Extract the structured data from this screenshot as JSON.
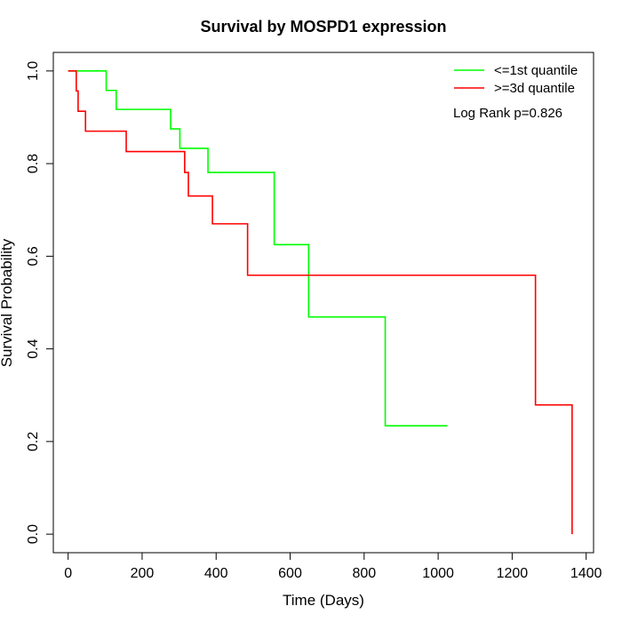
{
  "chart_data": {
    "type": "line",
    "step": true,
    "title": "Survival by MOSPD1 expression",
    "xlabel": "Time (Days)",
    "ylabel": "Survival Probability",
    "xlim": [
      -40,
      1420
    ],
    "ylim": [
      -0.04,
      1.04
    ],
    "x_ticks": [
      0,
      200,
      400,
      600,
      800,
      1000,
      1200,
      1400
    ],
    "y_ticks": [
      0.0,
      0.2,
      0.4,
      0.6,
      0.8,
      1.0
    ],
    "y_tick_labels": [
      "0.0",
      "0.2",
      "0.4",
      "0.6",
      "0.8",
      "1.0"
    ],
    "grid": false,
    "legend_position": "top-right",
    "annotation": "Log Rank p=0.826",
    "series": [
      {
        "name": "<=1st quantile",
        "color": "#00ff00",
        "x": [
          0,
          103,
          130,
          277,
          302,
          378,
          557,
          650,
          857,
          1025
        ],
        "y": [
          1.0,
          0.958,
          0.917,
          0.875,
          0.833,
          0.781,
          0.625,
          0.469,
          0.234,
          0.234
        ]
      },
      {
        "name": ">=3d quantile",
        "color": "#ff0000",
        "x": [
          0,
          22,
          27,
          47,
          157,
          315,
          325,
          390,
          485,
          1263,
          1362
        ],
        "y": [
          1.0,
          0.957,
          0.913,
          0.87,
          0.826,
          0.781,
          0.73,
          0.67,
          0.559,
          0.279,
          0.0
        ]
      }
    ]
  }
}
